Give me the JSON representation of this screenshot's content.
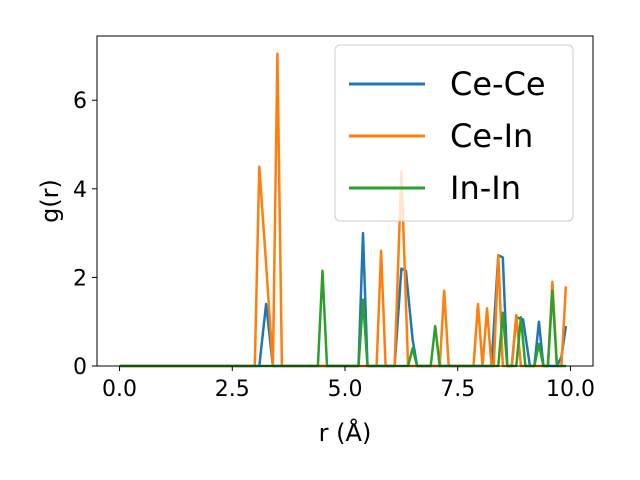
{
  "chart_data": {
    "type": "line",
    "xlabel": "r (Å)",
    "ylabel": "g(r)",
    "xlim": [
      -0.5,
      10.5
    ],
    "ylim": [
      0,
      7.45
    ],
    "xticks": [
      0.0,
      2.5,
      5.0,
      7.5,
      10.0
    ],
    "xtick_labels": [
      "0.0",
      "2.5",
      "5.0",
      "7.5",
      "10.0"
    ],
    "yticks": [
      0,
      2,
      4,
      6
    ],
    "ytick_labels": [
      "0",
      "2",
      "4",
      "6"
    ],
    "grid": false,
    "legend_position": "top-right",
    "series": [
      {
        "name": "Ce-Ce",
        "color": "#1f77b4",
        "x": [
          0.0,
          3.1,
          3.25,
          3.4,
          5.3,
          5.4,
          5.5,
          6.1,
          6.25,
          6.35,
          6.5,
          6.6,
          8.25,
          8.4,
          8.5,
          8.6,
          8.7,
          8.8,
          8.95,
          9.1,
          9.2,
          9.3,
          9.4,
          9.7,
          9.8,
          9.9
        ],
        "y": [
          0,
          0,
          1.4,
          0,
          0,
          3.0,
          0,
          0,
          2.2,
          2.15,
          0.6,
          0,
          0,
          2.5,
          2.45,
          0,
          0,
          1.1,
          1.05,
          0,
          0,
          1.0,
          0,
          0,
          0.2,
          0.9
        ]
      },
      {
        "name": "Ce-In",
        "color": "#ff7f0e",
        "x": [
          0.0,
          3.0,
          3.1,
          3.25,
          3.4,
          3.5,
          3.6,
          5.7,
          5.8,
          5.9,
          6.1,
          6.25,
          6.4,
          7.1,
          7.2,
          7.3,
          7.85,
          7.95,
          8.05,
          8.15,
          8.25,
          8.3,
          8.4,
          8.5,
          8.7,
          8.8,
          8.9,
          9.5,
          9.6,
          9.7,
          9.8,
          9.9
        ],
        "y": [
          0,
          0,
          4.5,
          2.3,
          0,
          7.05,
          0,
          0,
          2.6,
          0,
          0,
          4.4,
          0,
          0,
          1.7,
          0,
          0,
          1.4,
          0,
          1.3,
          0,
          0,
          2.5,
          0,
          0,
          1.15,
          0,
          0,
          1.9,
          0,
          0,
          1.8
        ]
      },
      {
        "name": "In-In",
        "color": "#2ca02c",
        "x": [
          0.0,
          4.4,
          4.5,
          4.6,
          5.3,
          5.4,
          5.5,
          6.4,
          6.5,
          6.6,
          6.9,
          7.0,
          7.1,
          8.4,
          8.5,
          8.6,
          8.8,
          8.9,
          9.0,
          9.2,
          9.3,
          9.4,
          9.5,
          9.6,
          9.7,
          9.9
        ],
        "y": [
          0,
          0,
          2.15,
          0,
          0,
          1.5,
          0,
          0,
          0.4,
          0,
          0,
          0.9,
          0,
          0,
          1.2,
          0,
          0,
          1.1,
          0,
          0,
          0.5,
          0,
          0,
          1.7,
          0,
          0
        ]
      }
    ]
  }
}
